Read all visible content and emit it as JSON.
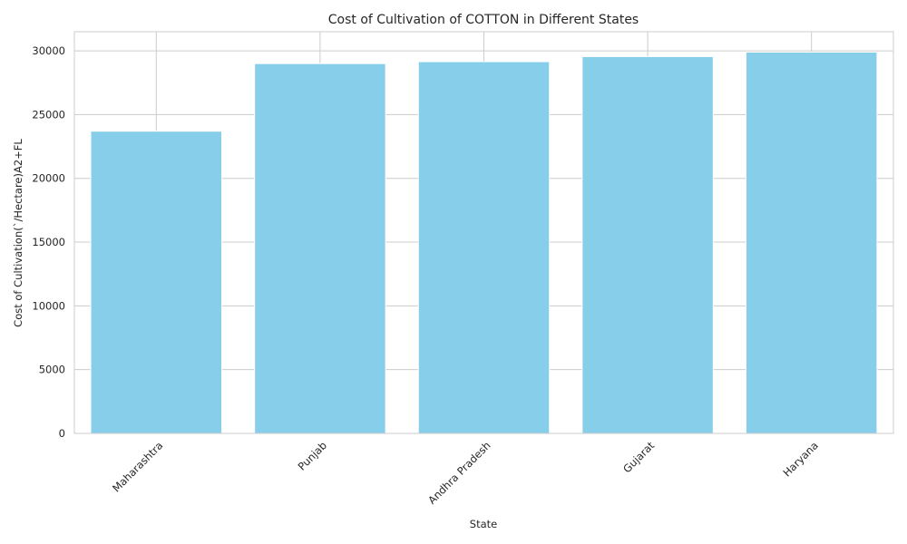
{
  "chart_data": {
    "type": "bar",
    "title": "Cost of Cultivation of COTTON in Different States",
    "xlabel": "State",
    "ylabel": "Cost of Cultivation(`/Hectare)A2+FL",
    "categories": [
      "Maharashtra",
      "Punjab",
      "Andhra Pradesh",
      "Gujarat",
      "Haryana"
    ],
    "values": [
      23700,
      29000,
      29150,
      29550,
      29900
    ],
    "ylim": [
      0,
      31500
    ],
    "yticks": [
      0,
      5000,
      10000,
      15000,
      20000,
      25000,
      30000
    ],
    "ytick_labels": [
      "0",
      "5000",
      "10000",
      "15000",
      "20000",
      "25000",
      "30000"
    ],
    "grid": true,
    "bar_color": "#87ceeb",
    "grid_color": "#cccccc",
    "xtick_rotation": 45
  }
}
